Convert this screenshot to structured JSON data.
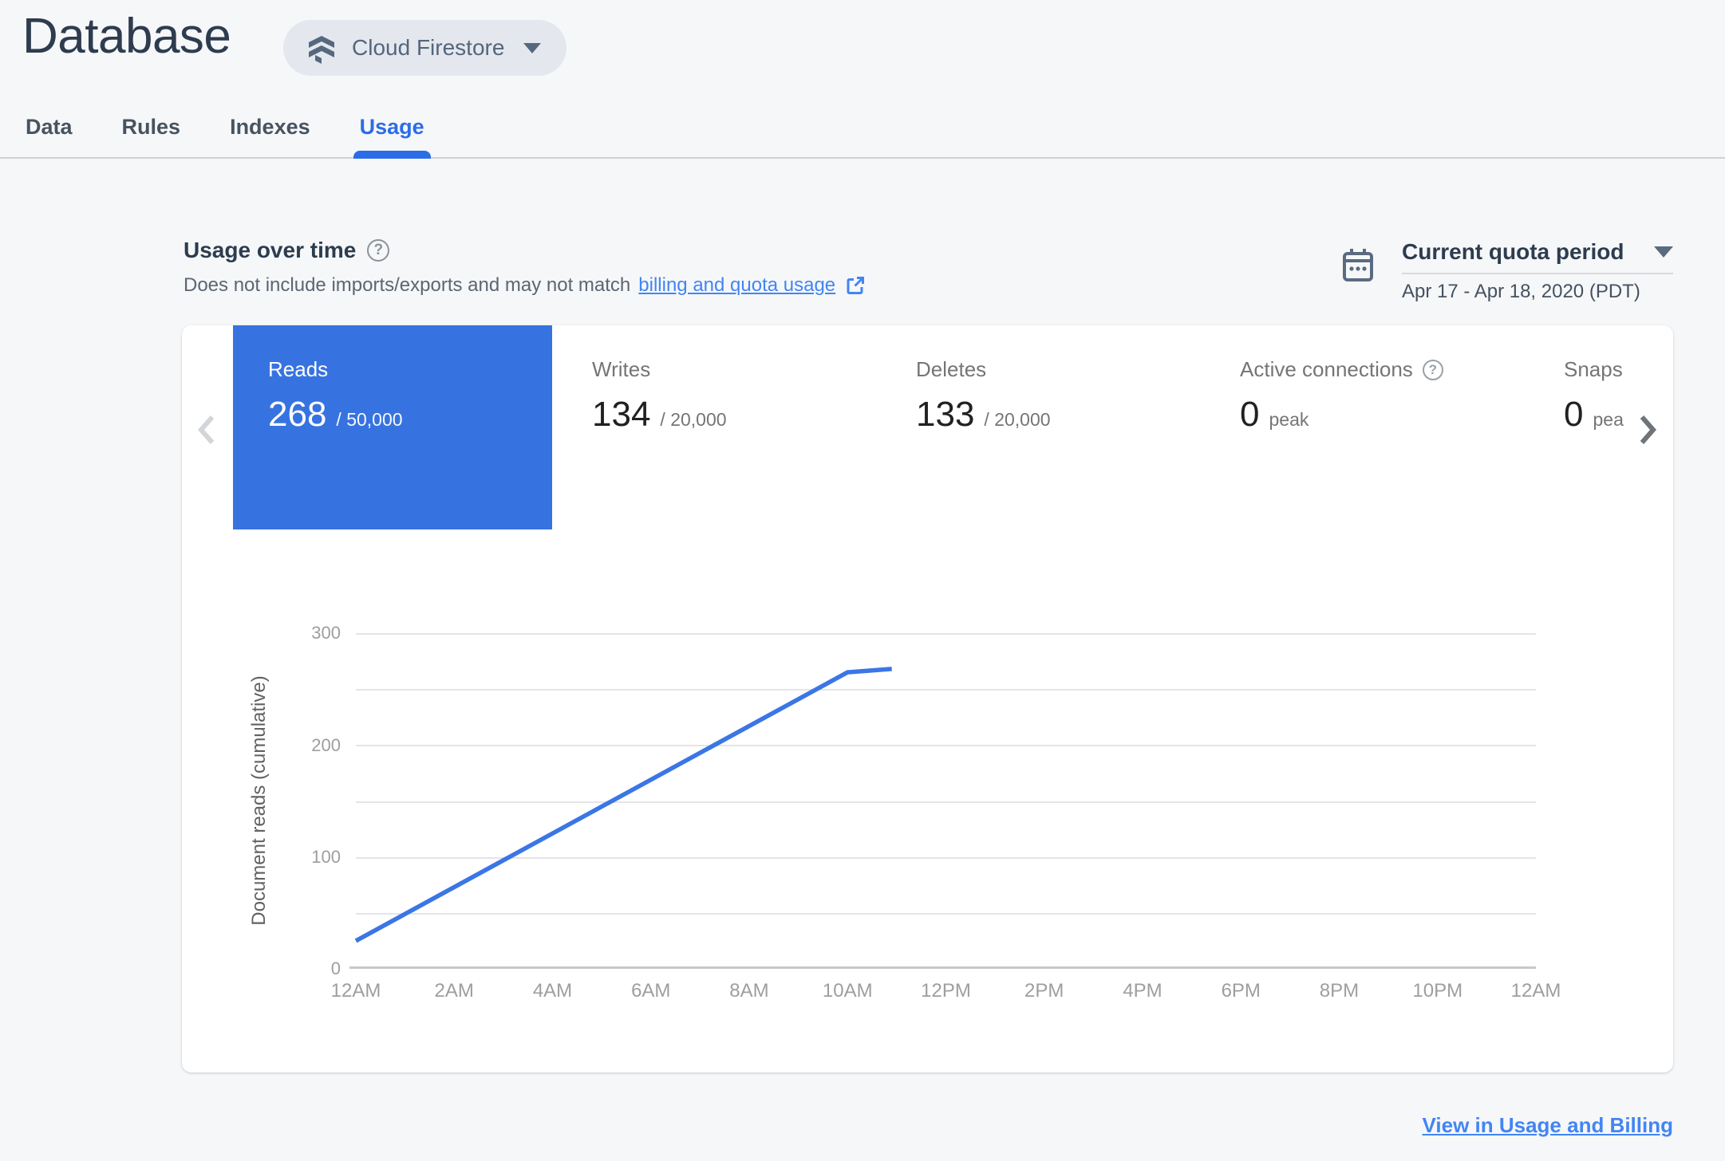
{
  "header": {
    "title": "Database",
    "product_selector": {
      "label": "Cloud Firestore"
    }
  },
  "tabs": [
    {
      "label": "Data",
      "active": false
    },
    {
      "label": "Rules",
      "active": false
    },
    {
      "label": "Indexes",
      "active": false
    },
    {
      "label": "Usage",
      "active": true
    }
  ],
  "usage_header": {
    "heading": "Usage over time",
    "subtitle_text": "Does not include imports/exports and may not match",
    "subtitle_link": "billing and quota usage"
  },
  "period_selector": {
    "label": "Current quota period",
    "range": "Apr 17 - Apr 18, 2020 (PDT)"
  },
  "metric_cards": [
    {
      "label": "Reads",
      "value": "268",
      "suffix": "/ 50,000",
      "selected": true
    },
    {
      "label": "Writes",
      "value": "134",
      "suffix": "/ 20,000",
      "selected": false
    },
    {
      "label": "Deletes",
      "value": "133",
      "suffix": "/ 20,000",
      "selected": false
    },
    {
      "label": "Active connections",
      "value": "0",
      "suffix": "peak",
      "selected": false,
      "has_help": true
    },
    {
      "label": "Snapshot listeners",
      "value": "0",
      "suffix": "peak",
      "selected": false
    }
  ],
  "chart_data": {
    "type": "line",
    "title": "",
    "xlabel": "",
    "ylabel": "Document reads (cumulative)",
    "x_ticks": [
      "12AM",
      "2AM",
      "4AM",
      "6AM",
      "8AM",
      "10AM",
      "12PM",
      "2PM",
      "4PM",
      "6PM",
      "8PM",
      "10PM",
      "12AM"
    ],
    "y_ticks": [
      0,
      100,
      200,
      300
    ],
    "ylim": [
      0,
      300
    ],
    "xlim_hours": [
      0,
      24
    ],
    "grid": "horizontal minor gridlines every 50, no vertical gridlines",
    "legend": "none",
    "series": [
      {
        "name": "Document reads (cumulative)",
        "color": "#3b76e6",
        "points": [
          {
            "hour": 0,
            "value": 25
          },
          {
            "hour": 10,
            "value": 265
          },
          {
            "hour": 10.9,
            "value": 268
          }
        ]
      }
    ]
  },
  "footer": {
    "link_label": "View in Usage and Billing"
  },
  "colors": {
    "page_bg": "#f6f7f9",
    "accent_tab_blue": "#2b6de8",
    "link_blue": "#4285f4",
    "card_blue": "#3773e0",
    "dark_slate": "#2d3c4e",
    "pill_bg": "#e4e8ee",
    "pill_fg": "#56687e",
    "gray_label": "#757575",
    "number_dark": "#212121",
    "gridline": "#e4e5e7",
    "axis_baseline": "#c6c9cc"
  }
}
